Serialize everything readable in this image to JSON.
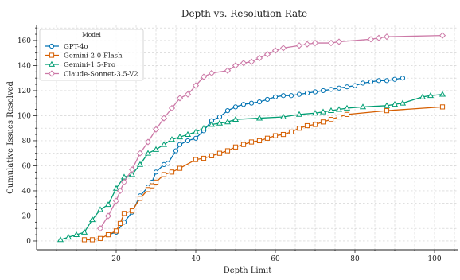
{
  "chart_data": {
    "type": "line",
    "title": "Depth vs. Resolution Rate",
    "xlabel": "Depth Limit",
    "ylabel": "Cumulative Issues Resolved",
    "xlim": [
      0,
      106
    ],
    "ylim": [
      -7,
      172
    ],
    "x_ticks": [
      20,
      40,
      60,
      80,
      100
    ],
    "y_ticks": [
      0,
      20,
      40,
      60,
      80,
      100,
      120,
      140,
      160
    ],
    "grid": true,
    "legend": {
      "title": "Model",
      "placement": "top-left"
    },
    "series": [
      {
        "name": "GPT-4o",
        "color": "#0072B2",
        "marker": "circle",
        "x": [
          18,
          20,
          22,
          24,
          26,
          28,
          29,
          30,
          32,
          33,
          35,
          36,
          38,
          40,
          42,
          44,
          46,
          48,
          50,
          52,
          54,
          56,
          58,
          60,
          62,
          64,
          66,
          68,
          70,
          72,
          74,
          76,
          78,
          80,
          82,
          84,
          86,
          88,
          90,
          92
        ],
        "y": [
          5,
          7,
          15,
          23,
          36,
          43,
          47,
          55,
          61,
          62,
          72,
          77,
          80,
          82,
          88,
          96,
          99,
          104,
          107,
          109,
          110,
          111,
          113,
          115,
          116,
          116,
          117,
          118,
          119,
          120,
          121,
          122,
          123,
          124,
          126,
          127,
          128,
          128,
          129,
          130
        ]
      },
      {
        "name": "Gemini-2.0-Flash",
        "color": "#D55E00",
        "marker": "square",
        "x": [
          12,
          14,
          16,
          18,
          20,
          21,
          22,
          24,
          26,
          28,
          29,
          30,
          32,
          34,
          36,
          40,
          42,
          44,
          46,
          48,
          50,
          52,
          54,
          56,
          58,
          60,
          62,
          64,
          66,
          68,
          70,
          72,
          74,
          76,
          78,
          88,
          102
        ],
        "y": [
          1,
          1,
          2,
          5,
          8,
          14,
          22,
          24,
          34,
          41,
          44,
          47,
          53,
          55,
          58,
          65,
          66,
          68,
          70,
          72,
          75,
          77,
          79,
          80,
          82,
          84,
          85,
          87,
          90,
          92,
          93,
          95,
          97,
          99,
          101,
          104,
          107
        ]
      },
      {
        "name": "Gemini-1.5-Pro",
        "color": "#009E73",
        "marker": "triangle",
        "x": [
          6,
          8,
          10,
          12,
          14,
          16,
          18,
          20,
          22,
          24,
          26,
          28,
          30,
          32,
          34,
          36,
          38,
          40,
          42,
          44,
          46,
          48,
          50,
          56,
          62,
          66,
          70,
          72,
          74,
          76,
          78,
          82,
          88,
          90,
          92,
          97,
          99,
          102
        ],
        "y": [
          1,
          3,
          5,
          7,
          17,
          25,
          29,
          42,
          51,
          53,
          61,
          70,
          73,
          77,
          81,
          83,
          85,
          87,
          90,
          93,
          94,
          95,
          97,
          98,
          99,
          101,
          102,
          103,
          104,
          105,
          106,
          107,
          108,
          109,
          110,
          115,
          116,
          117
        ]
      },
      {
        "name": "Claude-Sonnet-3.5-V2",
        "color": "#CC79A7",
        "marker": "diamond",
        "x": [
          16,
          18,
          20,
          21,
          22,
          24,
          26,
          28,
          30,
          32,
          34,
          36,
          38,
          40,
          42,
          44,
          48,
          50,
          52,
          54,
          56,
          58,
          60,
          62,
          66,
          68,
          70,
          74,
          76,
          84,
          86,
          88,
          102
        ],
        "y": [
          10,
          20,
          32,
          40,
          47,
          57,
          70,
          79,
          89,
          98,
          106,
          114,
          117,
          124,
          131,
          134,
          136,
          140,
          142,
          143,
          146,
          149,
          152,
          154,
          156,
          157,
          158,
          158,
          159,
          161,
          162,
          163,
          164
        ]
      }
    ]
  }
}
